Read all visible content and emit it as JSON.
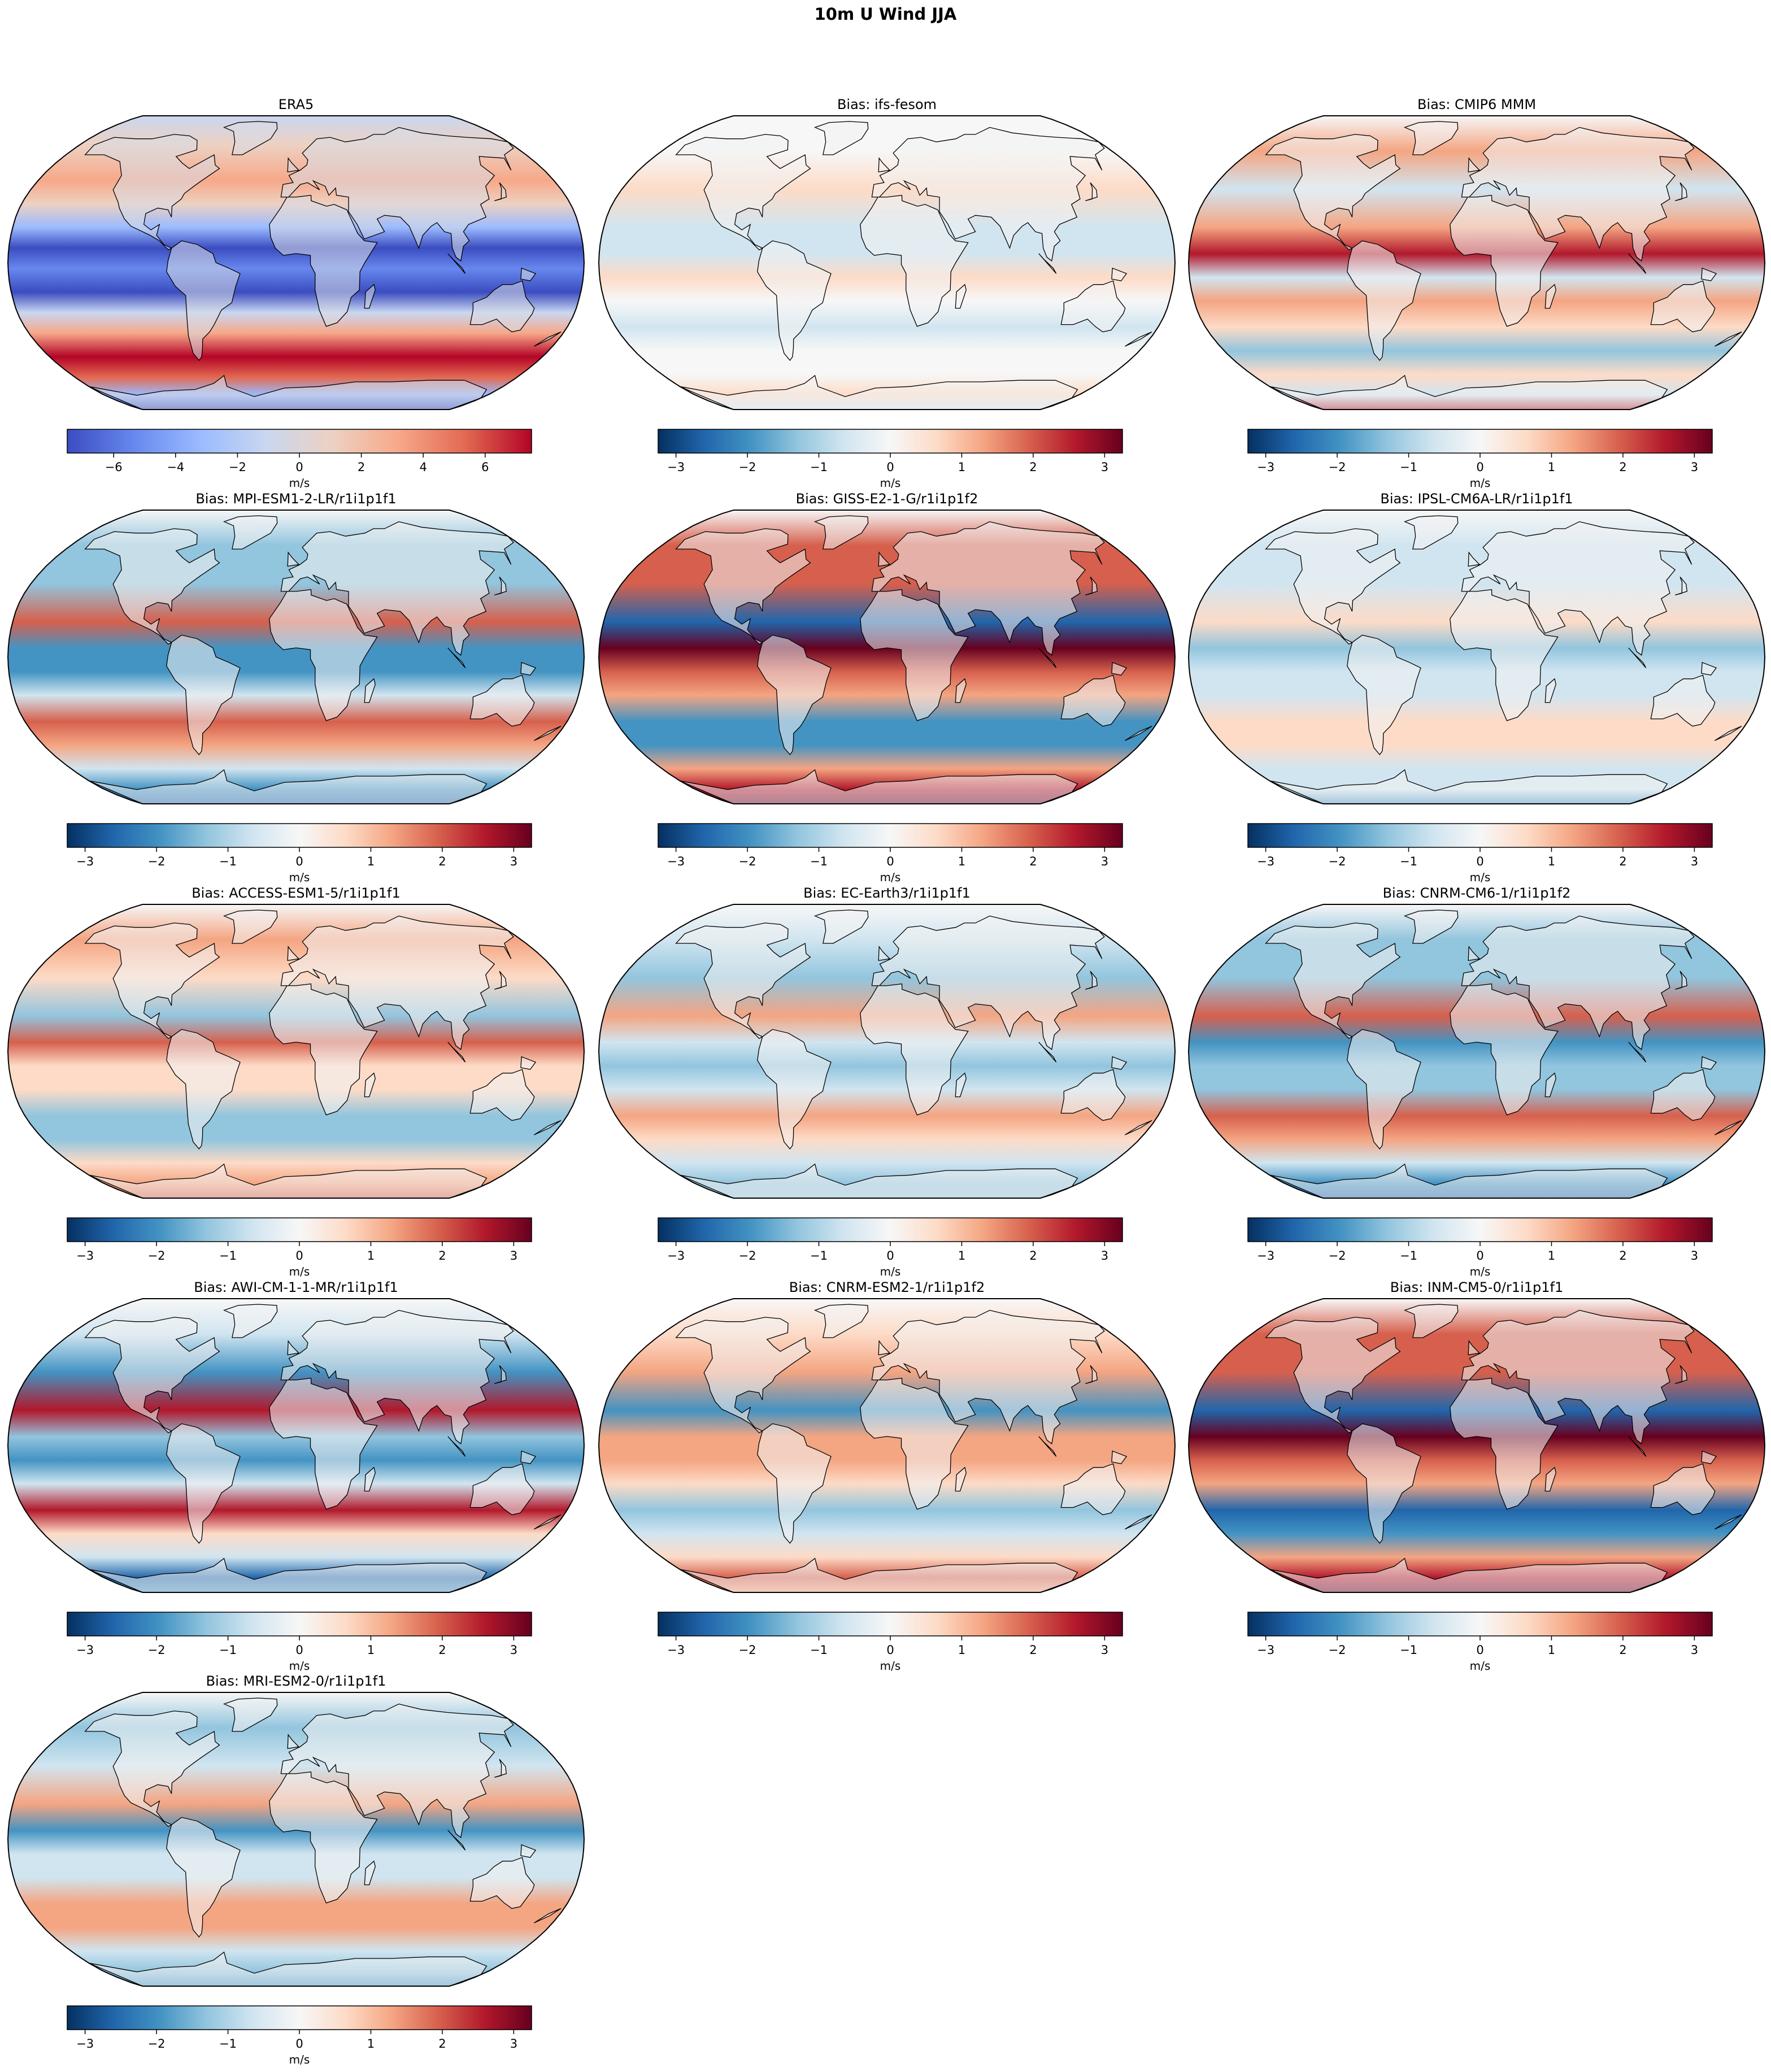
{
  "figure": {
    "title": "10m U Wind JJA"
  },
  "panels": [
    {
      "id": "era5",
      "title": "ERA5",
      "kind": "absolute",
      "colorbar": {
        "ticks": [
          "−6",
          "−4",
          "−2",
          "0",
          "2",
          "4",
          "6"
        ],
        "tick_values": [
          -6,
          -4,
          -2,
          0,
          2,
          4,
          6
        ],
        "range": [
          -7.5,
          7.5
        ],
        "label": "m/s",
        "cmap": "coolwarm"
      }
    },
    {
      "id": "ifs-fesom",
      "title": "Bias: ifs-fesom",
      "kind": "bias",
      "colorbar": {
        "ticks": [
          "−3",
          "−2",
          "−1",
          "0",
          "1",
          "2",
          "3"
        ],
        "tick_values": [
          -3,
          -2,
          -1,
          0,
          1,
          2,
          3
        ],
        "range": [
          -3.25,
          3.25
        ],
        "label": "m/s",
        "cmap": "RdBu_r"
      }
    },
    {
      "id": "cmip6-mmm",
      "title": "Bias: CMIP6 MMM",
      "kind": "bias",
      "colorbar": {
        "ticks": [
          "−3",
          "−2",
          "−1",
          "0",
          "1",
          "2",
          "3"
        ],
        "tick_values": [
          -3,
          -2,
          -1,
          0,
          1,
          2,
          3
        ],
        "range": [
          -3.25,
          3.25
        ],
        "label": "m/s",
        "cmap": "RdBu_r"
      }
    },
    {
      "id": "mpi-esm1-2-lr",
      "title": "Bias: MPI-ESM1-2-LR/r1i1p1f1",
      "kind": "bias",
      "colorbar": {
        "ticks": [
          "−3",
          "−2",
          "−1",
          "0",
          "1",
          "2",
          "3"
        ],
        "tick_values": [
          -3,
          -2,
          -1,
          0,
          1,
          2,
          3
        ],
        "range": [
          -3.25,
          3.25
        ],
        "label": "m/s",
        "cmap": "RdBu_r"
      }
    },
    {
      "id": "giss-e2-1-g",
      "title": "Bias: GISS-E2-1-G/r1i1p1f2",
      "kind": "bias",
      "colorbar": {
        "ticks": [
          "−3",
          "−2",
          "−1",
          "0",
          "1",
          "2",
          "3"
        ],
        "tick_values": [
          -3,
          -2,
          -1,
          0,
          1,
          2,
          3
        ],
        "range": [
          -3.25,
          3.25
        ],
        "label": "m/s",
        "cmap": "RdBu_r"
      }
    },
    {
      "id": "ipsl-cm6a-lr",
      "title": "Bias: IPSL-CM6A-LR/r1i1p1f1",
      "kind": "bias",
      "colorbar": {
        "ticks": [
          "−3",
          "−2",
          "−1",
          "0",
          "1",
          "2",
          "3"
        ],
        "tick_values": [
          -3,
          -2,
          -1,
          0,
          1,
          2,
          3
        ],
        "range": [
          -3.25,
          3.25
        ],
        "label": "m/s",
        "cmap": "RdBu_r"
      }
    },
    {
      "id": "access-esm1-5",
      "title": "Bias: ACCESS-ESM1-5/r1i1p1f1",
      "kind": "bias",
      "colorbar": {
        "ticks": [
          "−3",
          "−2",
          "−1",
          "0",
          "1",
          "2",
          "3"
        ],
        "tick_values": [
          -3,
          -2,
          -1,
          0,
          1,
          2,
          3
        ],
        "range": [
          -3.25,
          3.25
        ],
        "label": "m/s",
        "cmap": "RdBu_r"
      }
    },
    {
      "id": "ec-earth3",
      "title": "Bias: EC-Earth3/r1i1p1f1",
      "kind": "bias",
      "colorbar": {
        "ticks": [
          "−3",
          "−2",
          "−1",
          "0",
          "1",
          "2",
          "3"
        ],
        "tick_values": [
          -3,
          -2,
          -1,
          0,
          1,
          2,
          3
        ],
        "range": [
          -3.25,
          3.25
        ],
        "label": "m/s",
        "cmap": "RdBu_r"
      }
    },
    {
      "id": "cnrm-cm6-1",
      "title": "Bias: CNRM-CM6-1/r1i1p1f2",
      "kind": "bias",
      "colorbar": {
        "ticks": [
          "−3",
          "−2",
          "−1",
          "0",
          "1",
          "2",
          "3"
        ],
        "tick_values": [
          -3,
          -2,
          -1,
          0,
          1,
          2,
          3
        ],
        "range": [
          -3.25,
          3.25
        ],
        "label": "m/s",
        "cmap": "RdBu_r"
      }
    },
    {
      "id": "awi-cm-1-1-mr",
      "title": "Bias: AWI-CM-1-1-MR/r1i1p1f1",
      "kind": "bias",
      "colorbar": {
        "ticks": [
          "−3",
          "−2",
          "−1",
          "0",
          "1",
          "2",
          "3"
        ],
        "tick_values": [
          -3,
          -2,
          -1,
          0,
          1,
          2,
          3
        ],
        "range": [
          -3.25,
          3.25
        ],
        "label": "m/s",
        "cmap": "RdBu_r"
      }
    },
    {
      "id": "cnrm-esm2-1",
      "title": "Bias: CNRM-ESM2-1/r1i1p1f2",
      "kind": "bias",
      "colorbar": {
        "ticks": [
          "−3",
          "−2",
          "−1",
          "0",
          "1",
          "2",
          "3"
        ],
        "tick_values": [
          -3,
          -2,
          -1,
          0,
          1,
          2,
          3
        ],
        "range": [
          -3.25,
          3.25
        ],
        "label": "m/s",
        "cmap": "RdBu_r"
      }
    },
    {
      "id": "inm-cm5-0",
      "title": "Bias: INM-CM5-0/r1i1p1f1",
      "kind": "bias",
      "colorbar": {
        "ticks": [
          "−3",
          "−2",
          "−1",
          "0",
          "1",
          "2",
          "3"
        ],
        "tick_values": [
          -3,
          -2,
          -1,
          0,
          1,
          2,
          3
        ],
        "range": [
          -3.25,
          3.25
        ],
        "label": "m/s",
        "cmap": "RdBu_r"
      }
    },
    {
      "id": "mri-esm2-0",
      "title": "Bias: MRI-ESM2-0/r1i1p1f1",
      "kind": "bias",
      "colorbar": {
        "ticks": [
          "−3",
          "−2",
          "−1",
          "0",
          "1",
          "2",
          "3"
        ],
        "tick_values": [
          -3,
          -2,
          -1,
          0,
          1,
          2,
          3
        ],
        "range": [
          -3.25,
          3.25
        ],
        "label": "m/s",
        "cmap": "RdBu_r"
      }
    }
  ],
  "colors": {
    "coolwarm": [
      "#3b4cc0",
      "#6788ee",
      "#9abbff",
      "#c9d7f0",
      "#edd1c2",
      "#f7a889",
      "#e26952",
      "#b40426"
    ],
    "RdBu_r": [
      "#053061",
      "#2166ac",
      "#4393c3",
      "#92c5de",
      "#d1e5f0",
      "#f7f7f7",
      "#fddbc7",
      "#f4a582",
      "#d6604d",
      "#b2182b",
      "#67001f"
    ]
  }
}
